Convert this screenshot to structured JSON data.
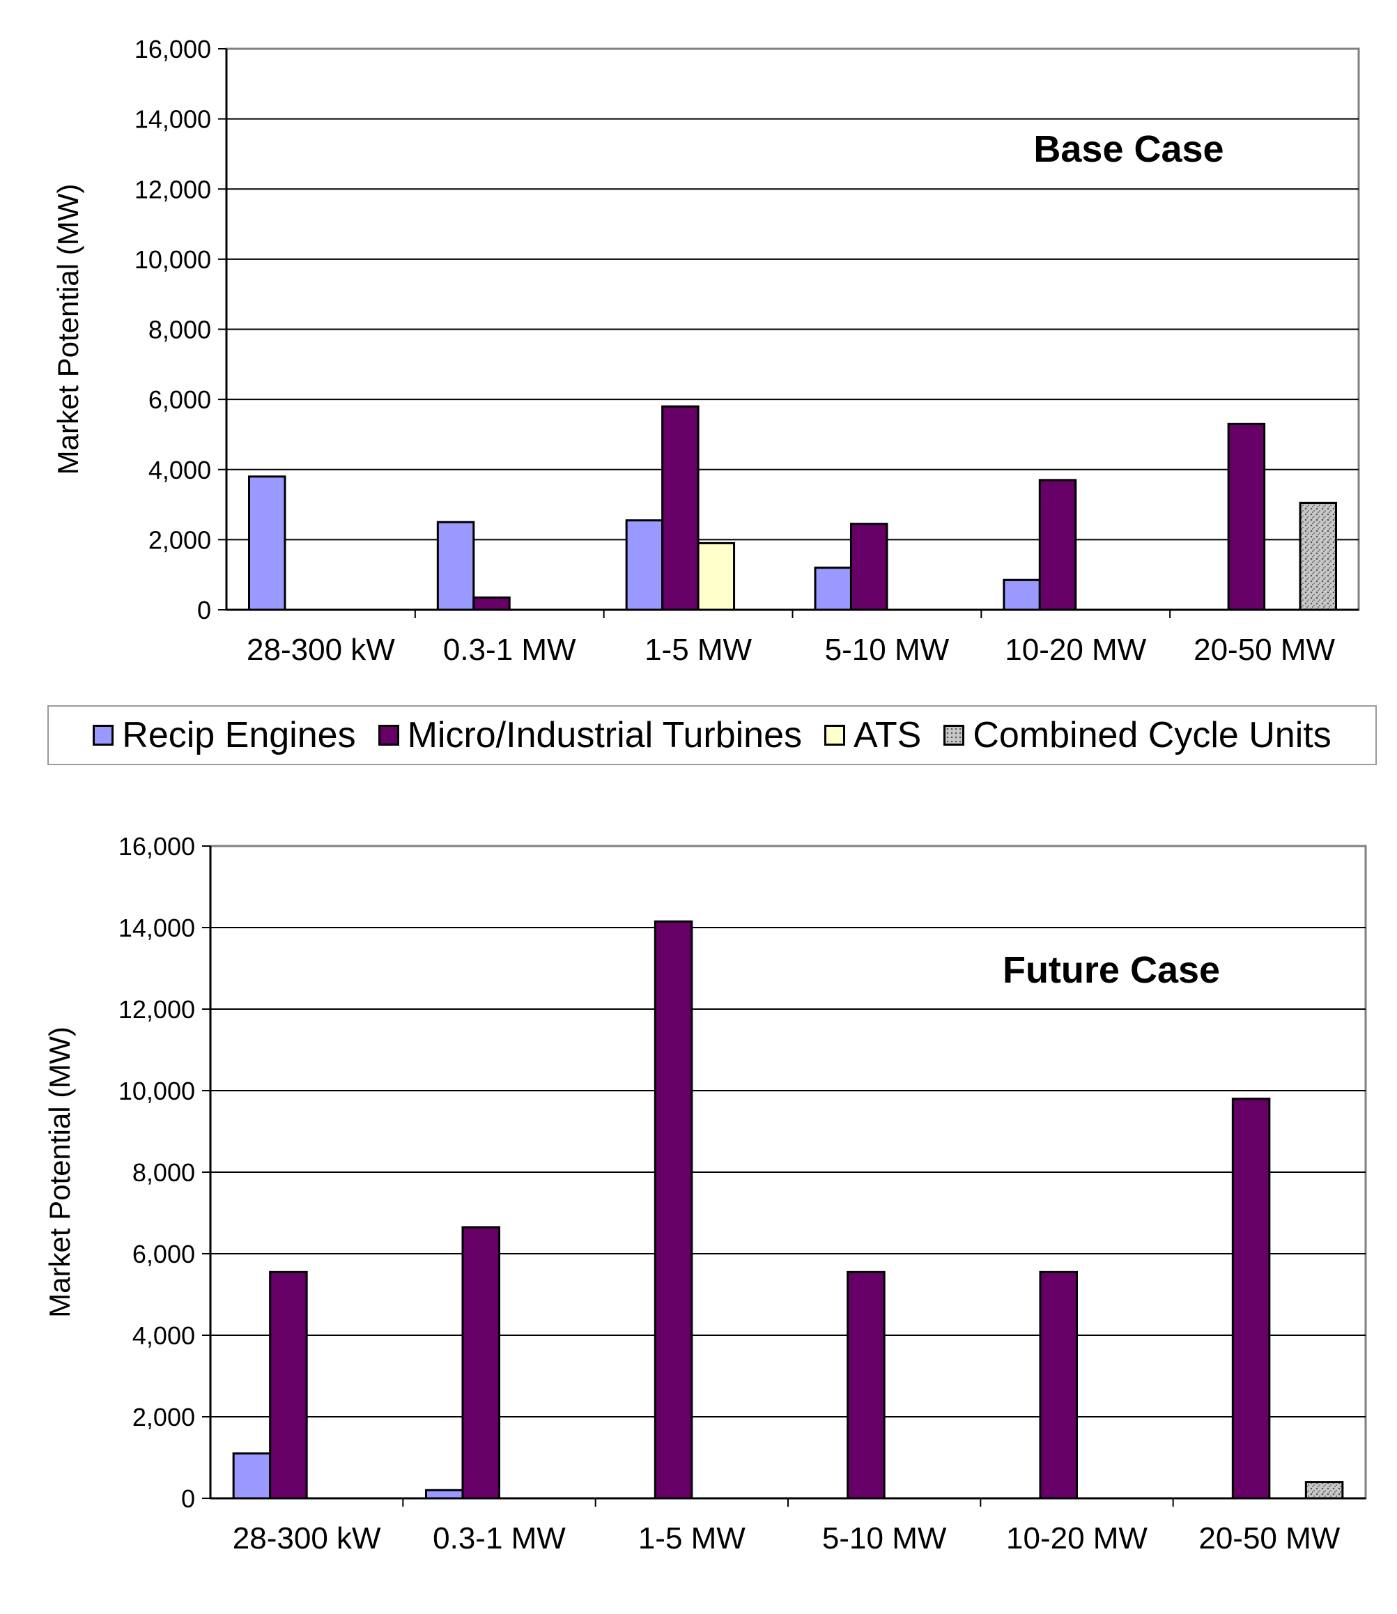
{
  "colors": {
    "recip": "#9999ff",
    "turbines": "#660066",
    "ats": "#ffffcc",
    "combined": "#c8c8c8",
    "grid": "#000000"
  },
  "legend": {
    "items": [
      {
        "label": "Recip Engines",
        "color": "#9999ff"
      },
      {
        "label": "Micro/Industrial Turbines",
        "color": "#660066"
      },
      {
        "label": "ATS",
        "color": "#ffffcc"
      },
      {
        "label": "Combined Cycle Units",
        "color": "#c8c8c8"
      }
    ]
  },
  "chart_data": [
    {
      "type": "bar",
      "title": "Base Case",
      "xlabel": "",
      "ylabel": "Market Potential (MW)",
      "ylim": [
        0,
        16000
      ],
      "yticks": [
        0,
        2000,
        4000,
        6000,
        8000,
        10000,
        12000,
        14000,
        16000
      ],
      "ytick_labels": [
        "0",
        "2,000",
        "4,000",
        "6,000",
        "8,000",
        "10,000",
        "12,000",
        "14,000",
        "16,000"
      ],
      "categories": [
        "28-300 kW",
        "0.3-1 MW",
        "1-5 MW",
        "5-10 MW",
        "10-20 MW",
        "20-50 MW"
      ],
      "series": [
        {
          "name": "Recip Engines",
          "values": [
            3800,
            2500,
            2550,
            1200,
            850,
            0
          ]
        },
        {
          "name": "Micro/Industrial Turbines",
          "values": [
            0,
            350,
            5800,
            2450,
            3700,
            5300
          ]
        },
        {
          "name": "ATS",
          "values": [
            0,
            0,
            1900,
            0,
            0,
            0
          ]
        },
        {
          "name": "Combined Cycle Units",
          "values": [
            0,
            0,
            0,
            0,
            0,
            3050
          ]
        }
      ],
      "grid": true
    },
    {
      "type": "bar",
      "title": "Future Case",
      "xlabel": "",
      "ylabel": "Market Potential (MW)",
      "ylim": [
        0,
        16000
      ],
      "yticks": [
        0,
        2000,
        4000,
        6000,
        8000,
        10000,
        12000,
        14000,
        16000
      ],
      "ytick_labels": [
        "0",
        "2,000",
        "4,000",
        "6,000",
        "8,000",
        "10,000",
        "12,000",
        "14,000",
        "16,000"
      ],
      "categories": [
        "28-300 kW",
        "0.3-1 MW",
        "1-5 MW",
        "5-10 MW",
        "10-20 MW",
        "20-50 MW"
      ],
      "series": [
        {
          "name": "Recip Engines",
          "values": [
            1100,
            200,
            0,
            0,
            0,
            0
          ]
        },
        {
          "name": "Micro/Industrial Turbines",
          "values": [
            5550,
            6650,
            14150,
            5550,
            5550,
            9800
          ]
        },
        {
          "name": "ATS",
          "values": [
            0,
            0,
            0,
            0,
            0,
            0
          ]
        },
        {
          "name": "Combined Cycle Units",
          "values": [
            0,
            0,
            0,
            0,
            0,
            400
          ]
        }
      ],
      "grid": true
    }
  ]
}
